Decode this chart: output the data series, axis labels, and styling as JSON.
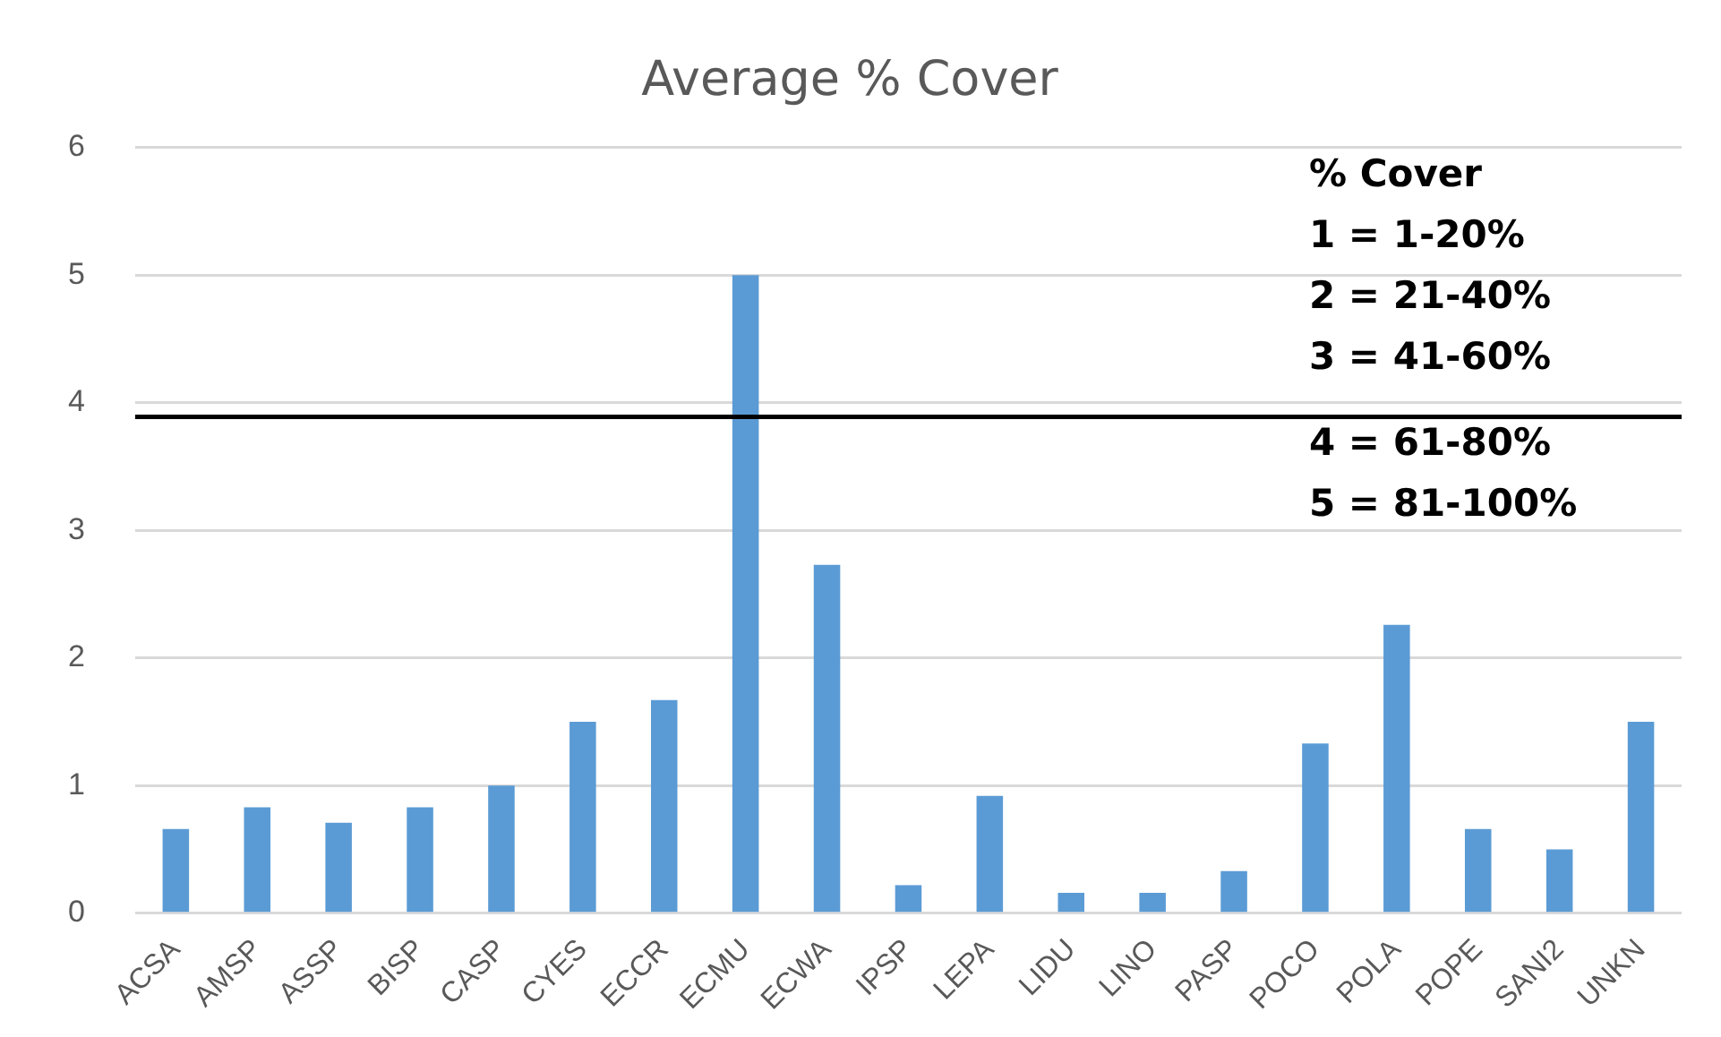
{
  "chart_data": {
    "type": "bar",
    "title": "Average % Cover",
    "categories": [
      "ACSA",
      "AMSP",
      "ASSP",
      "BISP",
      "CASP",
      "CYES",
      "ECCR",
      "ECMU",
      "ECWA",
      "IPSP",
      "LEPA",
      "LIDU",
      "LINO",
      "PASP",
      "POCO",
      "POLA",
      "POPE",
      "SANI2",
      "UNKN"
    ],
    "values": [
      0.66,
      0.83,
      0.71,
      0.83,
      1.0,
      1.5,
      1.67,
      5.0,
      2.73,
      0.22,
      0.92,
      0.16,
      0.16,
      0.33,
      1.33,
      2.26,
      0.66,
      0.5,
      1.5
    ],
    "color": "#5b9bd5",
    "ylim": [
      0,
      6
    ],
    "yticks": [
      0,
      1,
      2,
      3,
      4,
      5,
      6
    ],
    "grid": "y",
    "legend": false,
    "ref_lines": [
      {
        "axis": "y",
        "value": 3.89,
        "color": "#000000",
        "line_style": "solid"
      }
    ],
    "annotations": [
      "% Cover",
      "1 = 1-20%",
      "2 = 21-40%",
      "3 = 41-60%",
      "4 = 61-80%",
      "5 = 81-100%"
    ]
  }
}
